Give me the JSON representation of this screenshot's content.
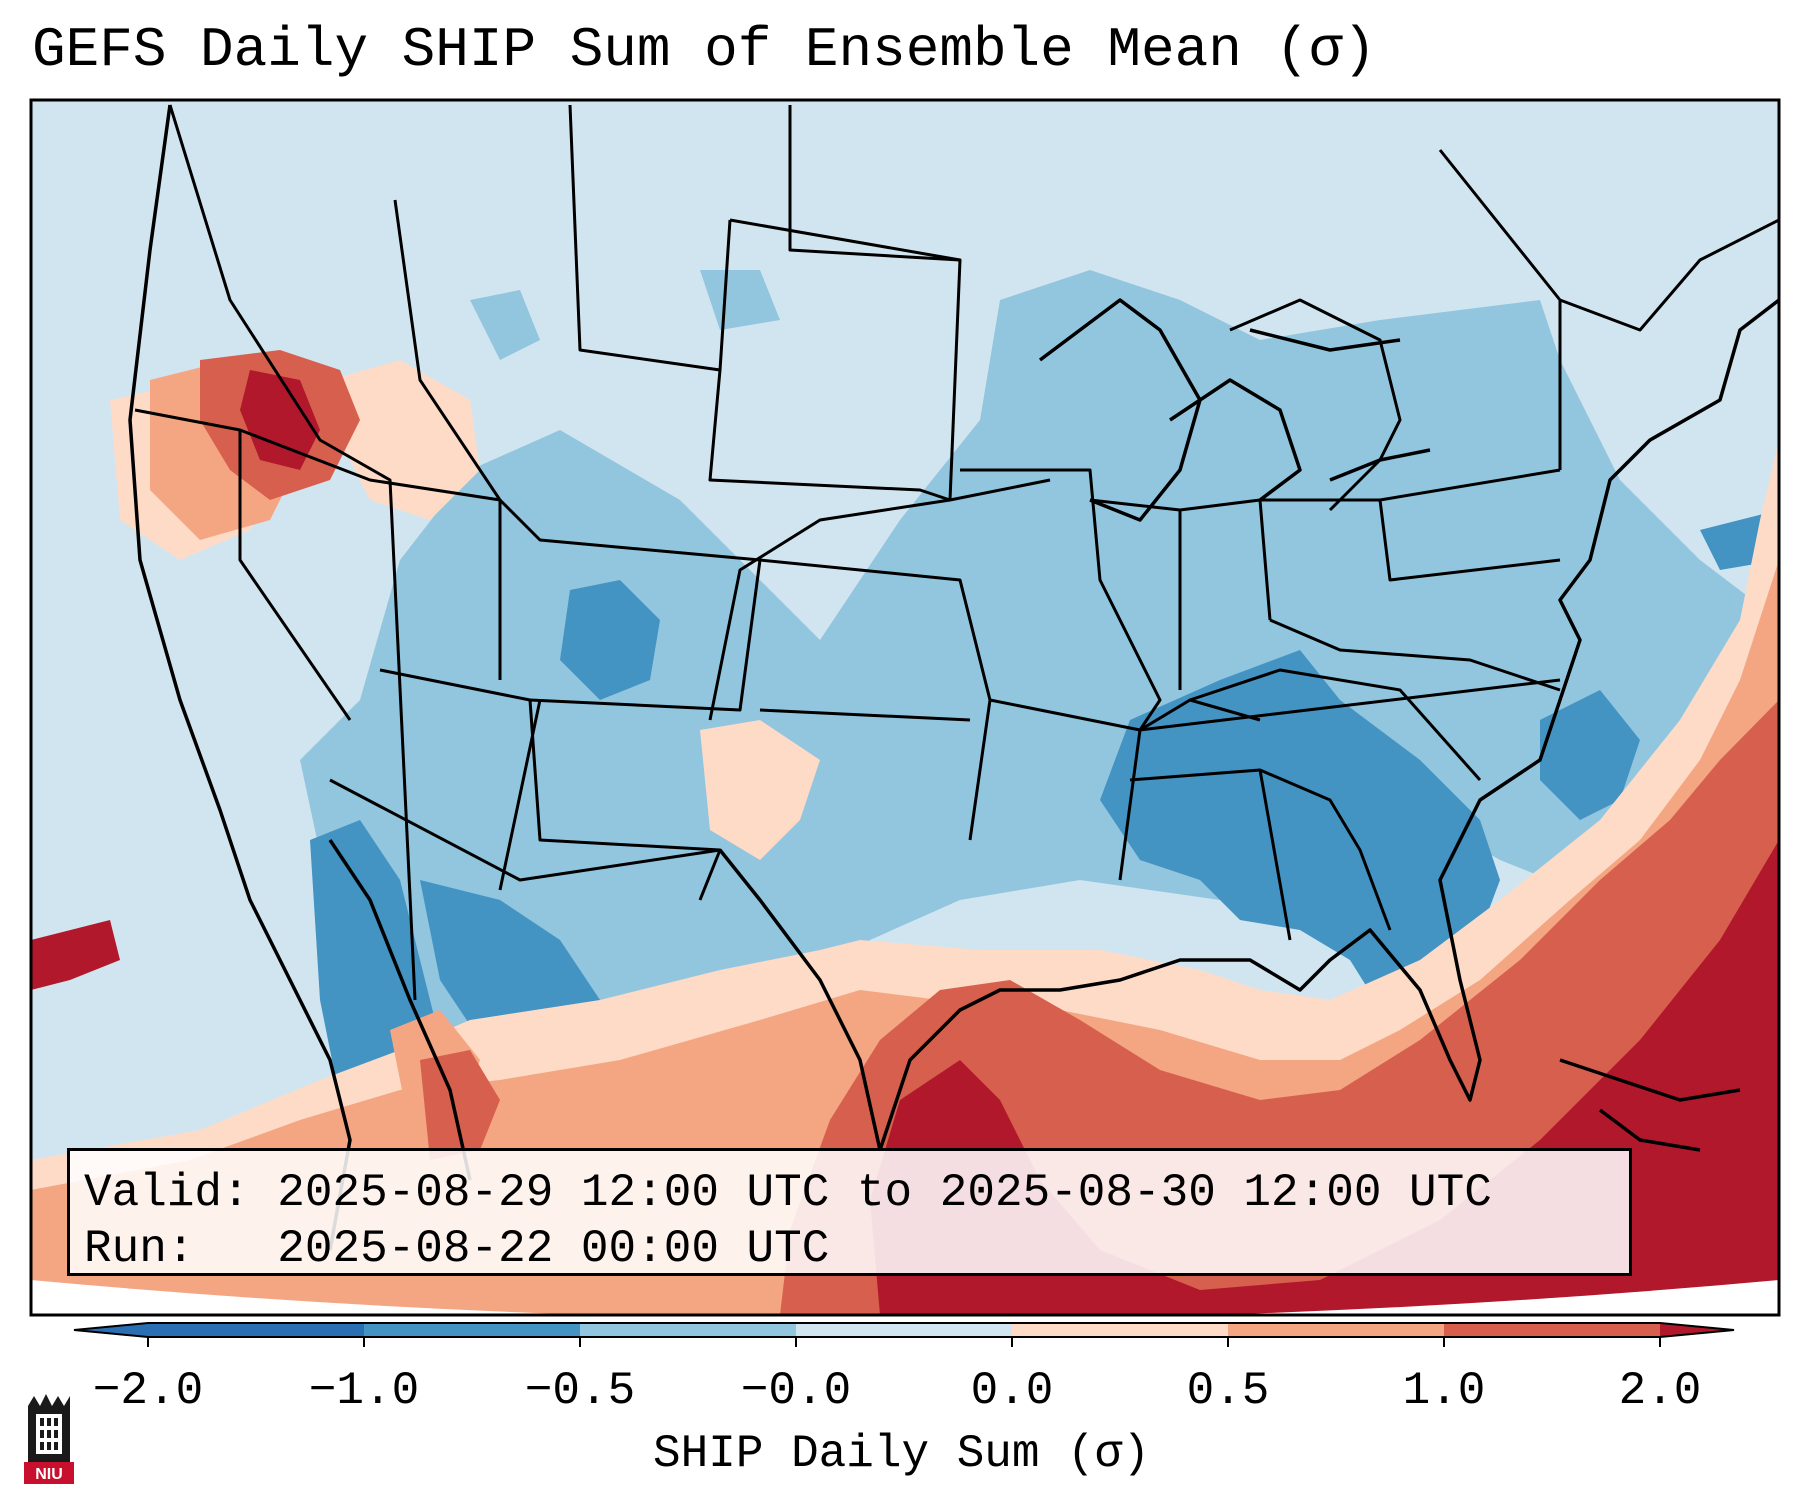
{
  "title": "GEFS Daily SHIP Sum of Ensemble Mean (σ)",
  "info": {
    "valid_label": "Valid:",
    "valid_value": "2025-08-29 12:00 UTC to 2025-08-30 12:00 UTC",
    "run_label": "Run:",
    "run_value": "2025-08-22 00:00 UTC"
  },
  "colorbar": {
    "label": "SHIP Daily Sum (σ)",
    "ticks": [
      "−2.0",
      "−1.0",
      "−0.5",
      "−0.0",
      "0.0",
      "0.5",
      "1.0",
      "2.0"
    ],
    "colors": [
      "#2a6fb4",
      "#4393c3",
      "#92c5de",
      "#d1e5f0",
      "#fddbc7",
      "#f4a582",
      "#d6604d",
      "#b2182b"
    ]
  },
  "logo": {
    "text": "NIU"
  }
}
